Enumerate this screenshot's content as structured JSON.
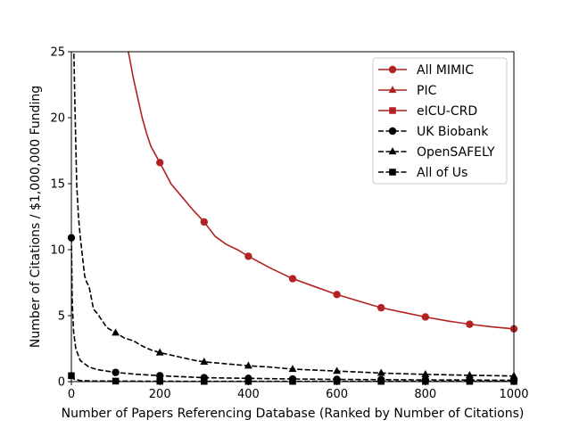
{
  "chart_data": {
    "type": "line",
    "title": "",
    "xlabel": "Number of Papers Referencing Database (Ranked by Number of Citations)",
    "ylabel": "Number of Citations / $1,000,000 Funding",
    "xlim": [
      0,
      1000
    ],
    "ylim": [
      0,
      25
    ],
    "xticks": [
      "0",
      "200",
      "400",
      "600",
      "800",
      "1000"
    ],
    "yticks": [
      "0",
      "5",
      "10",
      "15",
      "20",
      "25"
    ],
    "grid": false,
    "legend_position": "top-right",
    "series": [
      {
        "name": "All MIMIC",
        "color": "#b22222",
        "linestyle": "solid",
        "marker": "circle",
        "x": [
          120,
          130,
          140,
          150,
          160,
          170,
          180,
          190,
          200,
          225,
          250,
          275,
          300,
          325,
          350,
          375,
          400,
          450,
          500,
          550,
          600,
          650,
          700,
          750,
          800,
          850,
          900,
          950,
          1000
        ],
        "y": [
          26.0,
          24.8,
          23.0,
          21.5,
          20.0,
          18.8,
          17.8,
          17.2,
          16.6,
          15.0,
          14.0,
          13.0,
          12.1,
          11.0,
          10.4,
          10.0,
          9.5,
          8.6,
          7.8,
          7.2,
          6.6,
          6.1,
          5.6,
          5.25,
          4.9,
          4.6,
          4.35,
          4.15,
          4.0
        ],
        "marker_x": [
          200,
          300,
          400,
          500,
          600,
          700,
          800,
          900,
          1000
        ]
      },
      {
        "name": "PIC",
        "color": "#b22222",
        "linestyle": "solid",
        "marker": "triangle",
        "x": [],
        "y": [],
        "marker_x": []
      },
      {
        "name": "eICU-CRD",
        "color": "#b22222",
        "linestyle": "solid",
        "marker": "square",
        "x": [],
        "y": [],
        "marker_x": []
      },
      {
        "name": "UK Biobank",
        "color": "#000000",
        "linestyle": "dashed",
        "marker": "circle",
        "x": [
          0,
          2,
          5,
          10,
          20,
          40,
          60,
          80,
          100,
          150,
          200,
          300,
          400,
          500,
          600,
          700,
          800,
          900,
          1000
        ],
        "y": [
          10.9,
          6.0,
          3.8,
          2.5,
          1.6,
          1.1,
          0.9,
          0.8,
          0.7,
          0.55,
          0.45,
          0.3,
          0.25,
          0.2,
          0.17,
          0.15,
          0.13,
          0.12,
          0.1
        ],
        "marker_x": [
          0,
          100,
          200,
          300,
          400,
          500,
          600,
          700,
          800,
          900,
          1000
        ]
      },
      {
        "name": "OpenSAFELY",
        "color": "#000000",
        "linestyle": "dashed",
        "marker": "triangle",
        "x": [
          5,
          8,
          12,
          16,
          20,
          25,
          30,
          35,
          40,
          50,
          60,
          70,
          80,
          90,
          100,
          120,
          140,
          160,
          180,
          200,
          240,
          280,
          300,
          350,
          400,
          450,
          500,
          600,
          700,
          800,
          900,
          1000
        ],
        "y": [
          26.0,
          21.0,
          15.0,
          12.5,
          11.0,
          9.5,
          8.0,
          7.5,
          7.2,
          5.5,
          5.1,
          4.6,
          4.1,
          3.9,
          3.7,
          3.3,
          3.1,
          2.7,
          2.4,
          2.2,
          1.9,
          1.6,
          1.5,
          1.35,
          1.2,
          1.1,
          0.95,
          0.8,
          0.65,
          0.55,
          0.48,
          0.43
        ],
        "marker_x": [
          100,
          200,
          300,
          400,
          500,
          600,
          700,
          800,
          900,
          1000
        ]
      },
      {
        "name": "All of Us",
        "color": "#000000",
        "linestyle": "dashed",
        "marker": "square",
        "x": [
          0,
          5,
          20,
          50,
          100,
          200,
          300,
          400,
          500,
          600,
          700,
          800,
          900,
          1000
        ],
        "y": [
          0.45,
          0.2,
          0.08,
          0.05,
          0.04,
          0.03,
          0.02,
          0.02,
          0.02,
          0.02,
          0.02,
          0.02,
          0.02,
          0.02
        ],
        "marker_x": [
          0,
          100,
          200,
          300,
          400,
          500,
          600,
          700,
          800,
          900,
          1000
        ]
      }
    ]
  }
}
